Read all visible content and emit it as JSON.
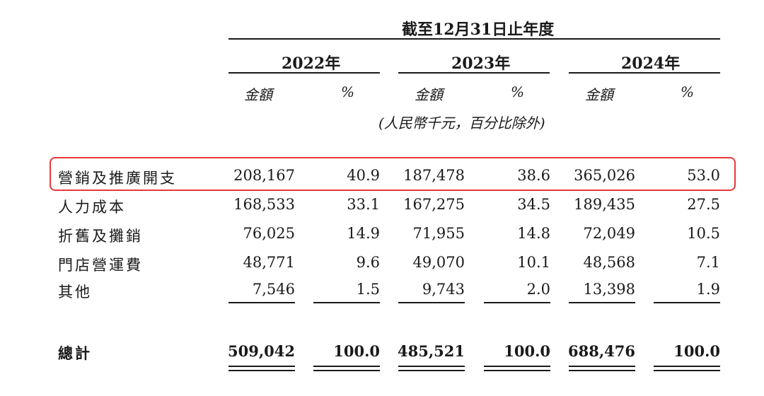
{
  "header": {
    "period": "截至12月31日止年度",
    "years": [
      "2022年",
      "2023年",
      "2024年"
    ],
    "amount_label": "金額",
    "pct_label": "%",
    "unit_note": "(人民幣千元，百分比除外)"
  },
  "rows": [
    {
      "label": "營銷及推廣開支",
      "values": [
        "208,167",
        "40.9",
        "187,478",
        "38.6",
        "365,026",
        "53.0"
      ]
    },
    {
      "label": "人力成本",
      "values": [
        "168,533",
        "33.1",
        "167,275",
        "34.5",
        "189,435",
        "27.5"
      ]
    },
    {
      "label": "折舊及攤銷",
      "values": [
        "76,025",
        "14.9",
        "71,955",
        "14.8",
        "72,049",
        "10.5"
      ]
    },
    {
      "label": "門店營運費",
      "values": [
        "48,771",
        "9.6",
        "49,070",
        "10.1",
        "48,568",
        "7.1"
      ]
    },
    {
      "label": "其他",
      "values": [
        "7,546",
        "1.5",
        "9,743",
        "2.0",
        "13,398",
        "1.9"
      ]
    }
  ],
  "total": {
    "label": "總計",
    "values": [
      "509,042",
      "100.0",
      "485,521",
      "100.0",
      "688,476",
      "100.0"
    ]
  },
  "highlight_color": "#e8383c"
}
